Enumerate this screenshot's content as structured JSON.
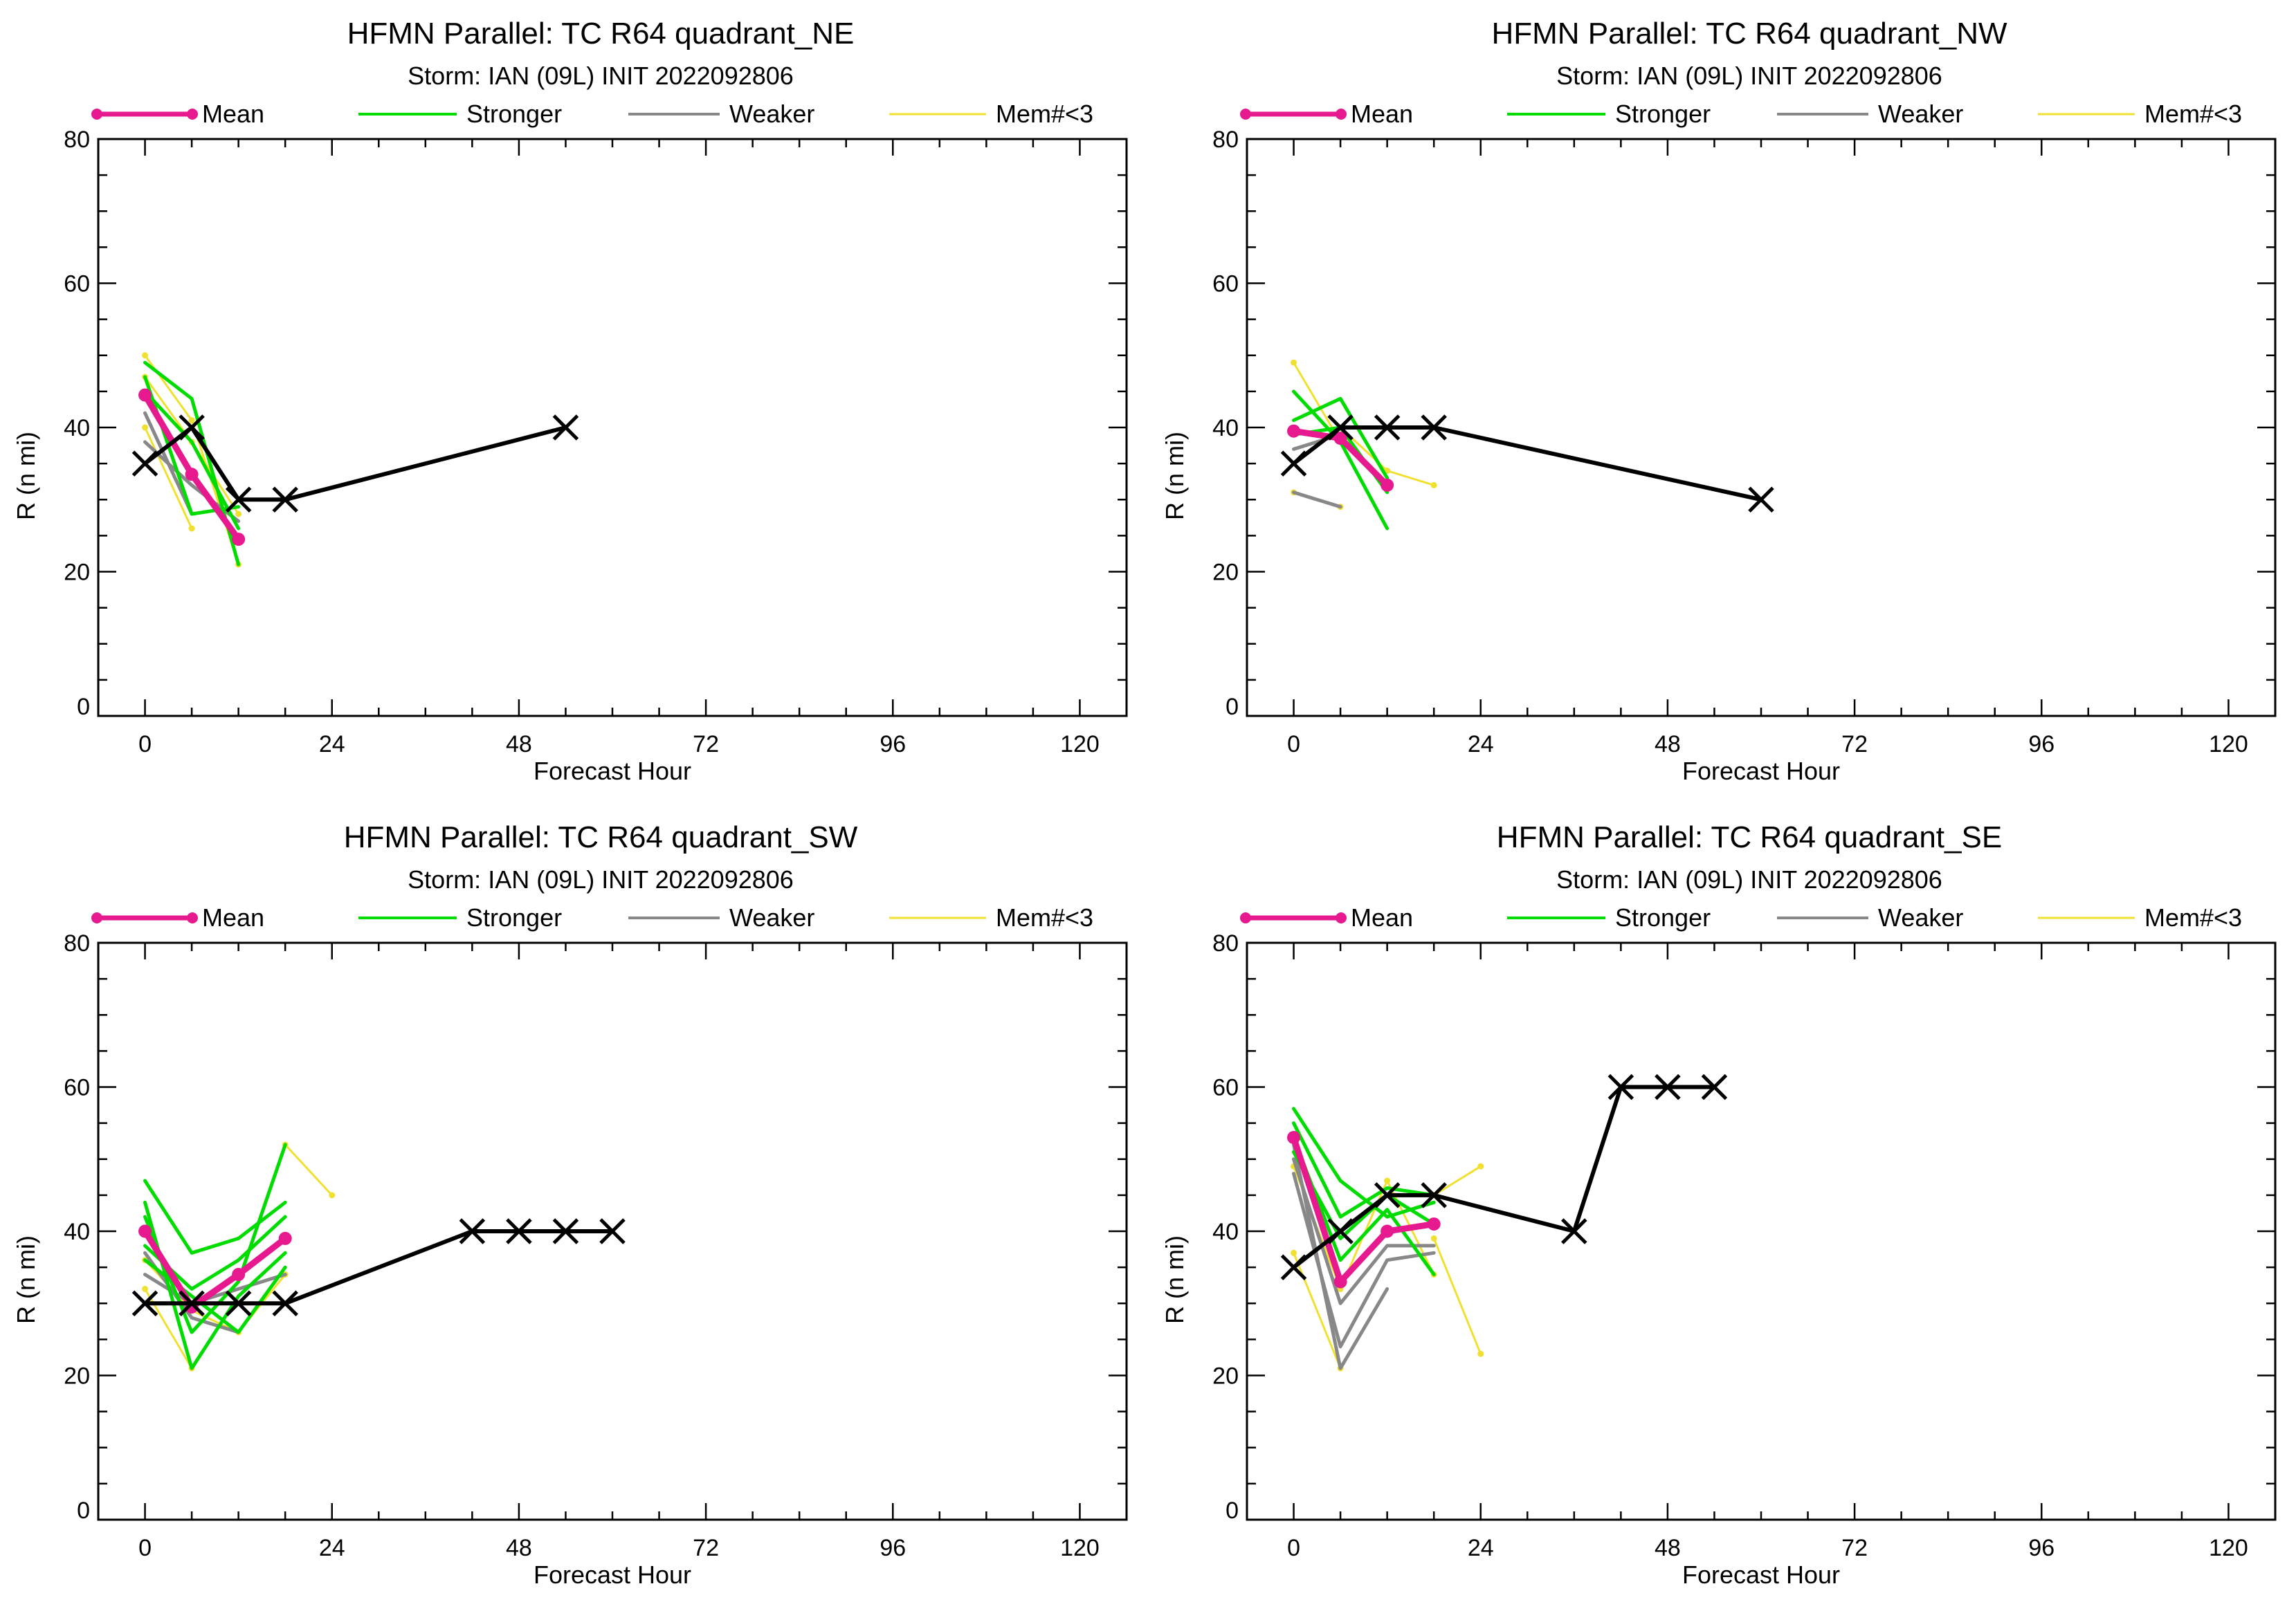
{
  "colors": {
    "mean": "#e6198f",
    "stronger": "#00dc00",
    "weaker": "#888888",
    "few_members": "#f0e030",
    "observed": "#000000"
  },
  "legend_labels": [
    "Mean",
    "Stronger",
    "Weaker",
    "Mem#<3"
  ],
  "chart_data": [
    {
      "type": "line",
      "title": "HFMN Parallel: TC  R64 quadrant_NE",
      "subtitle": "Storm: IAN (09L) INIT 2022092806",
      "xlabel": "Forecast Hour",
      "ylabel": "R (n mi)",
      "xlim": [
        -6,
        126
      ],
      "ylim": [
        0,
        80
      ],
      "xticks": [
        0,
        24,
        48,
        72,
        96,
        120
      ],
      "yticks": [
        0,
        20,
        40,
        60,
        80
      ],
      "legend_position": "top",
      "series": [
        {
          "name": "Mem#<3",
          "lines": [
            [
              [
                0,
                50
              ],
              [
                6,
                41
              ],
              [
                12,
                21
              ]
            ],
            [
              [
                0,
                40
              ],
              [
                6,
                26
              ]
            ],
            [
              [
                0,
                47
              ],
              [
                6,
                38
              ],
              [
                12,
                28
              ]
            ]
          ]
        },
        {
          "name": "Weaker",
          "lines": [
            [
              [
                0,
                42
              ],
              [
                6,
                28
              ]
            ],
            [
              [
                0,
                38
              ],
              [
                6,
                32
              ],
              [
                12,
                27
              ]
            ]
          ]
        },
        {
          "name": "Stronger",
          "lines": [
            [
              [
                0,
                49
              ],
              [
                6,
                44
              ],
              [
                12,
                21
              ]
            ],
            [
              [
                0,
                47
              ],
              [
                6,
                28
              ],
              [
                12,
                29
              ]
            ],
            [
              [
                0,
                45
              ],
              [
                6,
                38
              ],
              [
                12,
                26
              ]
            ]
          ]
        },
        {
          "name": "Mean",
          "lines": [
            [
              [
                0,
                44.5
              ],
              [
                6,
                33.5
              ],
              [
                12,
                24.5
              ]
            ]
          ]
        },
        {
          "name": "",
          "lines": [
            [
              [
                0,
                35
              ],
              [
                6,
                40
              ],
              [
                12,
                30
              ],
              [
                18,
                30
              ],
              [
                54,
                40
              ]
            ]
          ]
        }
      ]
    },
    {
      "type": "line",
      "title": "HFMN Parallel: TC  R64 quadrant_NW",
      "subtitle": "Storm: IAN (09L) INIT 2022092806",
      "xlabel": "Forecast Hour",
      "ylabel": "R (n mi)",
      "xlim": [
        -6,
        126
      ],
      "ylim": [
        0,
        80
      ],
      "xticks": [
        0,
        24,
        48,
        72,
        96,
        120
      ],
      "yticks": [
        0,
        20,
        40,
        60,
        80
      ],
      "legend_position": "top",
      "series": [
        {
          "name": "Mem#<3",
          "lines": [
            [
              [
                0,
                49
              ],
              [
                6,
                38
              ]
            ],
            [
              [
                0,
                31
              ],
              [
                6,
                29
              ]
            ],
            [
              [
                6,
                40
              ],
              [
                12,
                34
              ],
              [
                18,
                32
              ]
            ]
          ]
        },
        {
          "name": "Weaker",
          "lines": [
            [
              [
                0,
                31
              ],
              [
                6,
                29
              ]
            ],
            [
              [
                0,
                37
              ],
              [
                6,
                39
              ]
            ]
          ]
        },
        {
          "name": "Stronger",
          "lines": [
            [
              [
                0,
                45
              ],
              [
                6,
                38
              ],
              [
                12,
                26
              ]
            ],
            [
              [
                0,
                41
              ],
              [
                6,
                44
              ],
              [
                12,
                33
              ]
            ],
            [
              [
                0,
                39
              ],
              [
                6,
                40
              ],
              [
                12,
                31
              ]
            ]
          ]
        },
        {
          "name": "Mean",
          "lines": [
            [
              [
                0,
                39.5
              ],
              [
                6,
                38.5
              ],
              [
                12,
                32
              ]
            ]
          ]
        },
        {
          "name": "",
          "lines": [
            [
              [
                0,
                35
              ],
              [
                6,
                40
              ],
              [
                12,
                40
              ],
              [
                18,
                40
              ],
              [
                60,
                30
              ]
            ]
          ]
        }
      ]
    },
    {
      "type": "line",
      "title": "HFMN Parallel: TC  R64 quadrant_SW",
      "subtitle": "Storm: IAN (09L) INIT 2022092806",
      "xlabel": "Forecast Hour",
      "ylabel": "R (n mi)",
      "xlim": [
        -6,
        126
      ],
      "ylim": [
        0,
        80
      ],
      "xticks": [
        0,
        24,
        48,
        72,
        96,
        120
      ],
      "yticks": [
        0,
        20,
        40,
        60,
        80
      ],
      "legend_position": "top",
      "series": [
        {
          "name": "Mem#<3",
          "lines": [
            [
              [
                0,
                32
              ],
              [
                6,
                21
              ]
            ],
            [
              [
                18,
                52
              ],
              [
                24,
                45
              ]
            ],
            [
              [
                0,
                36
              ],
              [
                6,
                29
              ],
              [
                12,
                26
              ],
              [
                18,
                34
              ]
            ]
          ]
        },
        {
          "name": "Weaker",
          "lines": [
            [
              [
                0,
                37
              ],
              [
                6,
                28
              ],
              [
                12,
                26
              ]
            ],
            [
              [
                0,
                34
              ],
              [
                6,
                30
              ],
              [
                12,
                32
              ],
              [
                18,
                34
              ]
            ]
          ]
        },
        {
          "name": "Stronger",
          "lines": [
            [
              [
                0,
                47
              ],
              [
                6,
                37
              ],
              [
                12,
                39
              ],
              [
                18,
                44
              ]
            ],
            [
              [
                0,
                42
              ],
              [
                6,
                26
              ],
              [
                12,
                33
              ],
              [
                18,
                52
              ]
            ],
            [
              [
                0,
                38
              ],
              [
                6,
                32
              ],
              [
                12,
                36
              ],
              [
                18,
                42
              ]
            ],
            [
              [
                0,
                44
              ],
              [
                6,
                21
              ],
              [
                12,
                31
              ],
              [
                18,
                37
              ]
            ],
            [
              [
                0,
                36
              ],
              [
                6,
                31
              ],
              [
                12,
                26
              ],
              [
                18,
                35
              ]
            ]
          ]
        },
        {
          "name": "Mean",
          "lines": [
            [
              [
                0,
                40
              ],
              [
                6,
                29.5
              ],
              [
                12,
                34
              ],
              [
                18,
                39
              ]
            ]
          ]
        },
        {
          "name": "",
          "lines": [
            [
              [
                0,
                30
              ],
              [
                6,
                30
              ],
              [
                12,
                30
              ],
              [
                18,
                30
              ],
              [
                42,
                40
              ],
              [
                48,
                40
              ],
              [
                54,
                40
              ],
              [
                60,
                40
              ]
            ]
          ]
        }
      ]
    },
    {
      "type": "line",
      "title": "HFMN Parallel: TC  R64 quadrant_SE",
      "subtitle": "Storm: IAN (09L) INIT 2022092806",
      "xlabel": "Forecast Hour",
      "ylabel": "R (n mi)",
      "xlim": [
        -6,
        126
      ],
      "ylim": [
        0,
        80
      ],
      "xticks": [
        0,
        24,
        48,
        72,
        96,
        120
      ],
      "yticks": [
        0,
        20,
        40,
        60,
        80
      ],
      "legend_position": "top",
      "series": [
        {
          "name": "Mem#<3",
          "lines": [
            [
              [
                0,
                37
              ],
              [
                6,
                21
              ]
            ],
            [
              [
                18,
                45
              ],
              [
                24,
                49
              ]
            ],
            [
              [
                18,
                39
              ],
              [
                24,
                23
              ]
            ],
            [
              [
                0,
                49
              ],
              [
                6,
                32
              ],
              [
                12,
                47
              ],
              [
                18,
                34
              ]
            ]
          ]
        },
        {
          "name": "Weaker",
          "lines": [
            [
              [
                0,
                52
              ],
              [
                6,
                21
              ],
              [
                12,
                32
              ]
            ],
            [
              [
                0,
                48
              ],
              [
                6,
                24
              ],
              [
                12,
                36
              ],
              [
                18,
                37
              ]
            ],
            [
              [
                0,
                50
              ],
              [
                6,
                30
              ],
              [
                12,
                38
              ],
              [
                18,
                38
              ]
            ]
          ]
        },
        {
          "name": "Stronger",
          "lines": [
            [
              [
                0,
                57
              ],
              [
                6,
                47
              ],
              [
                12,
                42
              ],
              [
                18,
                44
              ]
            ],
            [
              [
                0,
                55
              ],
              [
                6,
                42
              ],
              [
                12,
                46
              ],
              [
                18,
                45
              ]
            ],
            [
              [
                0,
                53
              ],
              [
                6,
                36
              ],
              [
                12,
                43
              ],
              [
                18,
                34
              ]
            ],
            [
              [
                0,
                51
              ],
              [
                6,
                39
              ],
              [
                12,
                45
              ],
              [
                18,
                41
              ]
            ]
          ]
        },
        {
          "name": "Mean",
          "lines": [
            [
              [
                0,
                53
              ],
              [
                6,
                33
              ],
              [
                12,
                40
              ],
              [
                18,
                41
              ]
            ]
          ]
        },
        {
          "name": "",
          "lines": [
            [
              [
                0,
                35
              ],
              [
                6,
                40
              ],
              [
                12,
                45
              ],
              [
                18,
                45
              ],
              [
                36,
                40
              ],
              [
                42,
                60
              ],
              [
                48,
                60
              ],
              [
                54,
                60
              ]
            ]
          ]
        }
      ]
    }
  ]
}
